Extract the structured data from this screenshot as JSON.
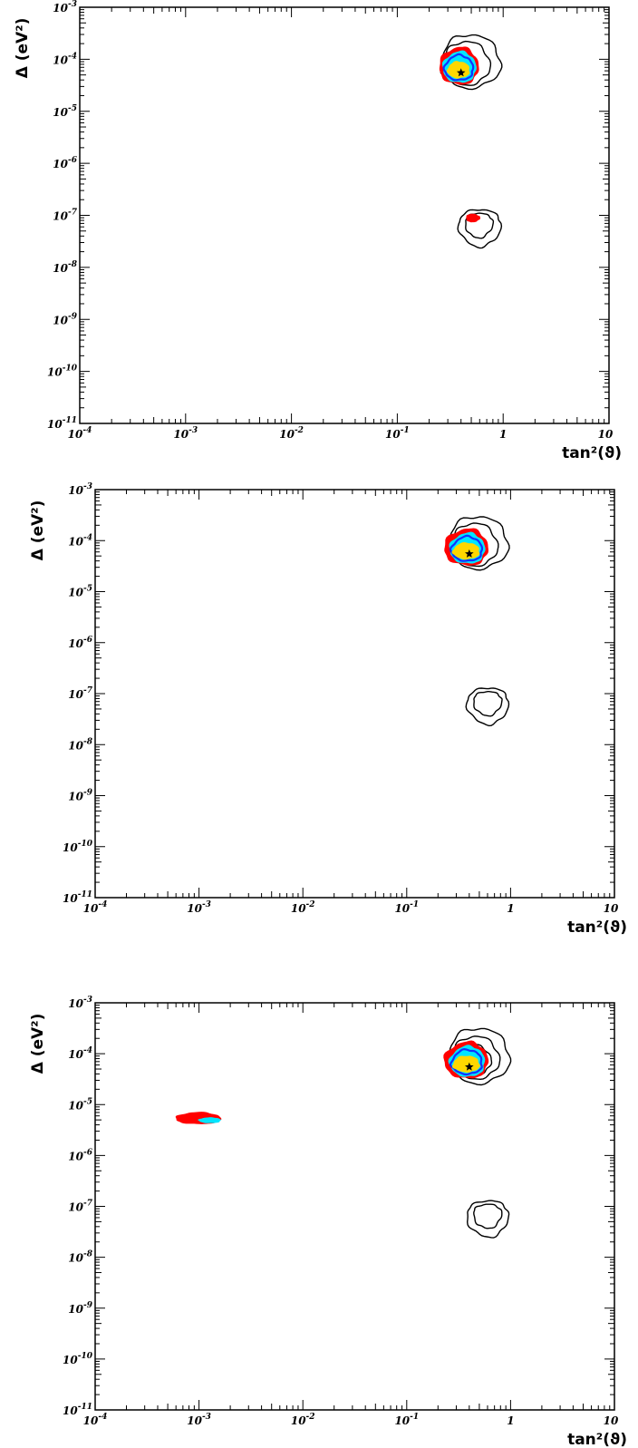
{
  "colors": {
    "outer_contour": "#000000",
    "red_region": "#ff0000",
    "cyan_region": "#00e5ff",
    "blue_contour": "#1030ff",
    "yellow_region": "#ffd700",
    "axes": "#000000"
  },
  "chart_data": [
    {
      "type": "contour",
      "panel": "top",
      "xscale": "log",
      "yscale": "log",
      "xlim": [
        0.0001,
        10
      ],
      "ylim": [
        1e-11,
        0.001
      ],
      "xticks": [
        "10^-4",
        "10^-3",
        "10^-2",
        "10^-1",
        "1",
        "10"
      ],
      "yticks": [
        "10^-11",
        "10^-10",
        "10^-9",
        "10^-8",
        "10^-7",
        "10^-6",
        "10^-5",
        "10^-4",
        "10^-3"
      ],
      "xlabel": "tan²(ϑ)",
      "ylabel": "Δ (eV²)",
      "best_fit": {
        "x": 0.4,
        "y": 5.5e-05
      },
      "regions": [
        {
          "color": "black",
          "style": "line",
          "cx": 0.47,
          "cy": 8e-05,
          "x": [
            0.26,
            0.95
          ],
          "y": [
            2.8e-05,
            0.0003
          ]
        },
        {
          "color": "black",
          "style": "line",
          "cx": 0.44,
          "cy": 7.5e-05,
          "x": [
            0.27,
            0.75
          ],
          "y": [
            3.2e-05,
            0.00022
          ]
        },
        {
          "color": "red",
          "style": "fill",
          "cx": 0.4,
          "cy": 6.8e-05,
          "x": [
            0.25,
            0.58
          ],
          "y": [
            3.3e-05,
            0.00017
          ]
        },
        {
          "color": "cyan",
          "style": "fill",
          "cx": 0.4,
          "cy": 6.5e-05,
          "x": [
            0.27,
            0.55
          ],
          "y": [
            3.6e-05,
            0.00014
          ]
        },
        {
          "color": "blue",
          "style": "line",
          "cx": 0.39,
          "cy": 6.2e-05,
          "x": [
            0.28,
            0.52
          ],
          "y": [
            4e-05,
            0.00012
          ]
        },
        {
          "color": "yellow",
          "style": "fill",
          "cx": 0.38,
          "cy": 6e-05,
          "x": [
            0.3,
            0.48
          ],
          "y": [
            4.4e-05,
            9e-05
          ]
        },
        {
          "color": "black",
          "style": "line",
          "cx": 0.6,
          "cy": 7e-08,
          "x": [
            0.38,
            0.95
          ],
          "y": [
            2.5e-08,
            1.3e-07
          ]
        },
        {
          "color": "black",
          "style": "line",
          "cx": 0.58,
          "cy": 7.5e-08,
          "x": [
            0.44,
            0.8
          ],
          "y": [
            3.7e-08,
            1.1e-07
          ]
        },
        {
          "color": "red",
          "style": "fill",
          "cx": 0.5,
          "cy": 9e-08,
          "x": [
            0.45,
            0.6
          ],
          "y": [
            7.5e-08,
            1.05e-07
          ]
        }
      ]
    },
    {
      "type": "contour",
      "panel": "middle",
      "xscale": "log",
      "yscale": "log",
      "xlim": [
        0.0001,
        10
      ],
      "ylim": [
        1e-11,
        0.001
      ],
      "xticks": [
        "10^-4",
        "10^-3",
        "10^-2",
        "10^-1",
        "1",
        "10"
      ],
      "yticks": [
        "10^-11",
        "10^-10",
        "10^-9",
        "10^-8",
        "10^-7",
        "10^-6",
        "10^-5",
        "10^-4",
        "10^-3"
      ],
      "xlabel": "tan²(ϑ)",
      "ylabel": "Δ (eV²)",
      "best_fit": {
        "x": 0.4,
        "y": 5.5e-05
      },
      "regions": [
        {
          "color": "black",
          "style": "line",
          "cx": 0.47,
          "cy": 8e-05,
          "x": [
            0.25,
            0.95
          ],
          "y": [
            2.8e-05,
            0.0003
          ]
        },
        {
          "color": "black",
          "style": "line",
          "cx": 0.44,
          "cy": 7.5e-05,
          "x": [
            0.27,
            0.75
          ],
          "y": [
            3.2e-05,
            0.00022
          ]
        },
        {
          "color": "red",
          "style": "fill",
          "cx": 0.4,
          "cy": 6.8e-05,
          "x": [
            0.23,
            0.6
          ],
          "y": [
            3.3e-05,
            0.00017
          ]
        },
        {
          "color": "cyan",
          "style": "fill",
          "cx": 0.4,
          "cy": 6.5e-05,
          "x": [
            0.26,
            0.56
          ],
          "y": [
            3.6e-05,
            0.00014
          ]
        },
        {
          "color": "blue",
          "style": "line",
          "cx": 0.39,
          "cy": 6.2e-05,
          "x": [
            0.27,
            0.53
          ],
          "y": [
            4e-05,
            0.00012
          ]
        },
        {
          "color": "yellow",
          "style": "fill",
          "cx": 0.38,
          "cy": 6e-05,
          "x": [
            0.28,
            0.5
          ],
          "y": [
            4.4e-05,
            9e-05
          ]
        },
        {
          "color": "black",
          "style": "line",
          "cx": 0.62,
          "cy": 7e-08,
          "x": [
            0.38,
            0.95
          ],
          "y": [
            2.5e-08,
            1.3e-07
          ]
        },
        {
          "color": "black",
          "style": "line",
          "cx": 0.6,
          "cy": 7.5e-08,
          "x": [
            0.44,
            0.82
          ],
          "y": [
            3.7e-08,
            1.1e-07
          ]
        }
      ]
    },
    {
      "type": "contour",
      "panel": "bottom",
      "xscale": "log",
      "yscale": "log",
      "xlim": [
        0.0001,
        10
      ],
      "ylim": [
        1e-11,
        0.001
      ],
      "xticks": [
        "10^-4",
        "10^-3",
        "10^-2",
        "10^-1",
        "1",
        "10"
      ],
      "yticks": [
        "10^-11",
        "10^-10",
        "10^-9",
        "10^-8",
        "10^-7",
        "10^-6",
        "10^-5",
        "10^-4",
        "10^-3"
      ],
      "xlabel": "tan²(ϑ)",
      "ylabel": "Δ (eV²)",
      "best_fit": {
        "x": 0.4,
        "y": 5.5e-05
      },
      "regions": [
        {
          "color": "black",
          "style": "line",
          "cx": 0.48,
          "cy": 8e-05,
          "x": [
            0.25,
            0.98
          ],
          "y": [
            2.6e-05,
            0.00032
          ]
        },
        {
          "color": "black",
          "style": "line",
          "cx": 0.45,
          "cy": 7.5e-05,
          "x": [
            0.27,
            0.78
          ],
          "y": [
            3.2e-05,
            0.00022
          ]
        },
        {
          "color": "black",
          "style": "line",
          "cx": 0.43,
          "cy": 7e-05,
          "x": [
            0.29,
            0.65
          ],
          "y": [
            3.8e-05,
            0.00015
          ]
        },
        {
          "color": "red",
          "style": "fill",
          "cx": 0.4,
          "cy": 6.8e-05,
          "x": [
            0.23,
            0.6
          ],
          "y": [
            3.3e-05,
            0.00017
          ]
        },
        {
          "color": "cyan",
          "style": "fill",
          "cx": 0.4,
          "cy": 6.5e-05,
          "x": [
            0.26,
            0.56
          ],
          "y": [
            3.6e-05,
            0.00014
          ]
        },
        {
          "color": "blue",
          "style": "line",
          "cx": 0.39,
          "cy": 6.2e-05,
          "x": [
            0.27,
            0.53
          ],
          "y": [
            4e-05,
            0.00012
          ]
        },
        {
          "color": "yellow",
          "style": "fill",
          "cx": 0.38,
          "cy": 6e-05,
          "x": [
            0.28,
            0.5
          ],
          "y": [
            4.4e-05,
            9e-05
          ]
        },
        {
          "color": "black",
          "style": "line",
          "cx": 0.62,
          "cy": 7e-08,
          "x": [
            0.38,
            0.95
          ],
          "y": [
            2.5e-08,
            1.3e-07
          ]
        },
        {
          "color": "black",
          "style": "line",
          "cx": 0.6,
          "cy": 7.5e-08,
          "x": [
            0.44,
            0.82
          ],
          "y": [
            3.7e-08,
            1.1e-07
          ]
        },
        {
          "color": "red",
          "style": "fill",
          "cx": 0.001,
          "cy": 5.2e-06,
          "x": [
            0.0006,
            0.0016
          ],
          "y": [
            4.2e-06,
            7e-06
          ]
        },
        {
          "color": "cyan",
          "style": "fill",
          "cx": 0.0013,
          "cy": 4.9e-06,
          "x": [
            0.001,
            0.0016
          ],
          "y": [
            4.4e-06,
            5.5e-06
          ]
        }
      ]
    }
  ]
}
